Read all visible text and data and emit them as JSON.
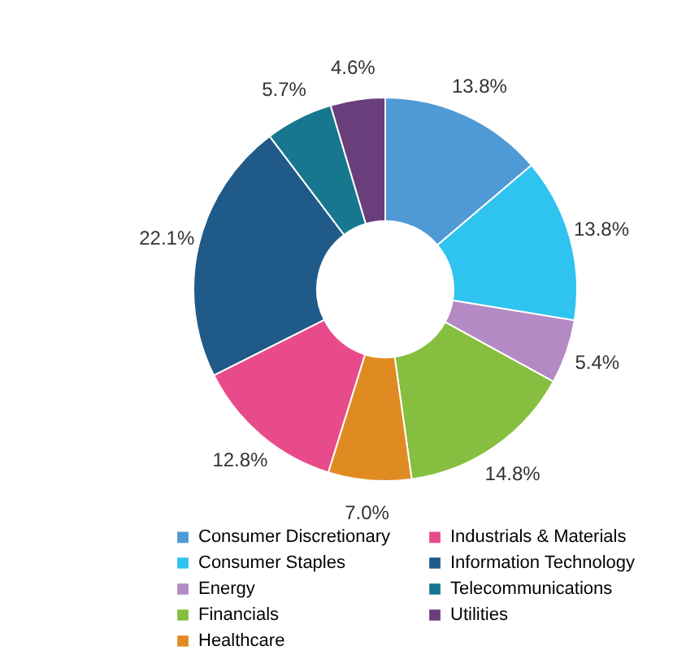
{
  "chart_data": {
    "type": "donut",
    "categories": [
      "Consumer Discretionary",
      "Consumer Staples",
      "Energy",
      "Financials",
      "Healthcare",
      "Industrials & Materials",
      "Information Technology",
      "Telecommunications",
      "Utilities"
    ],
    "values": [
      13.8,
      13.8,
      5.4,
      14.8,
      7.0,
      12.8,
      22.1,
      5.7,
      4.6
    ],
    "value_labels": [
      "13.8%",
      "13.8%",
      "5.4%",
      "14.8%",
      "7.0%",
      "12.8%",
      "22.1%",
      "5.7%",
      "4.6%"
    ],
    "colors": [
      "#4f9ad5",
      "#2fc3ef",
      "#b38ac4",
      "#86bf3f",
      "#e08b22",
      "#e84b8b",
      "#1f5a88",
      "#17778f",
      "#6a3e7a"
    ],
    "legend": "bottom"
  }
}
